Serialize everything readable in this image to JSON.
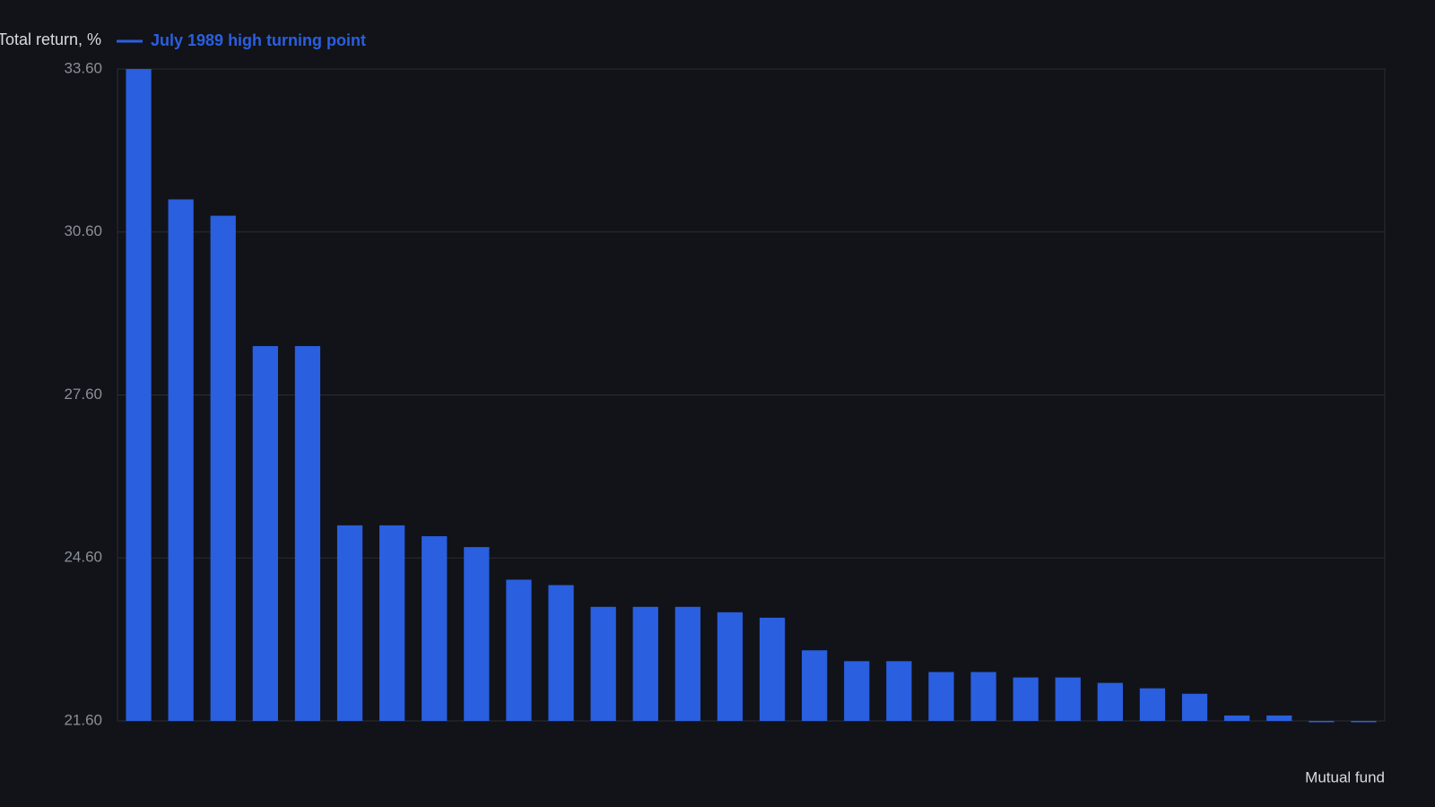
{
  "chart_data": {
    "type": "bar",
    "y_label": "Total return, %",
    "x_label": "Mutual fund",
    "categories": [
      null,
      null,
      null,
      null,
      null,
      null,
      null,
      null,
      null,
      null,
      null,
      null,
      null,
      null,
      null,
      null,
      null,
      null,
      null,
      null,
      null,
      null,
      null,
      null,
      null,
      null,
      null,
      null,
      null,
      null
    ],
    "series": [
      {
        "name": "July 1989 high turning point",
        "color": "#2a5fe0",
        "values": [
          33.6,
          31.2,
          30.9,
          28.5,
          28.5,
          25.2,
          25.2,
          25.0,
          24.8,
          24.2,
          24.1,
          23.7,
          23.7,
          23.7,
          23.6,
          23.5,
          22.9,
          22.7,
          22.7,
          22.5,
          22.5,
          22.4,
          22.4,
          22.3,
          22.2,
          22.1,
          21.7,
          21.7,
          21.6,
          21.6
        ]
      }
    ],
    "ylim": [
      21.6,
      33.6
    ],
    "yticks": [
      {
        "value": 21.6,
        "label": "21.60"
      },
      {
        "value": 24.6,
        "label": "24.60"
      },
      {
        "value": 27.6,
        "label": "27.60"
      },
      {
        "value": 30.6,
        "label": "30.60"
      },
      {
        "value": 33.6,
        "label": "33.60"
      }
    ],
    "grid": true
  }
}
